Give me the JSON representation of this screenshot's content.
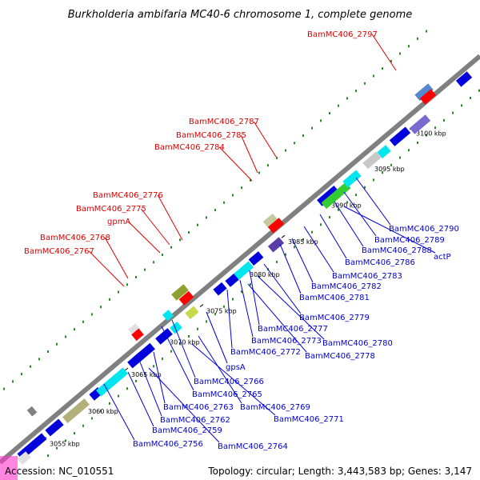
{
  "title": "Burkholderia ambifaria MC40-6 chromosome 1, complete genome",
  "footer": {
    "accession": "Accession: NC_010551",
    "summary": "Topology: circular; Length: 3,443,583 bp; Genes: 3,147"
  },
  "colors": {
    "forward_gene": "#ff0000",
    "reverse_gene": "#0000dd",
    "link_forward": "#dd0000",
    "link_reverse": "#0000dd",
    "backbone": "#888888",
    "dots": "#2a8a2a"
  },
  "ticks": [
    "3055 kbp",
    "3060 kbp",
    "3065 kbp",
    "3070 kbp",
    "3075 kbp",
    "3080 kbp",
    "3085 kbp",
    "3090 kbp",
    "3095 kbp",
    "3100 kbp"
  ],
  "labels_forward": [
    "BamMC406_2797",
    "BamMC406_2787",
    "BamMC406_2785",
    "BamMC406_2784",
    "BamMC406_2776",
    "BamMC406_2775",
    "gpmA",
    "BamMC406_2768",
    "BamMC406_2767"
  ],
  "labels_reverse": [
    "BamMC406_2790",
    "BamMC406_2789",
    "BamMC406_2788",
    "actP",
    "BamMC406_2786",
    "BamMC406_2783",
    "BamMC406_2782",
    "BamMC406_2781",
    "BamMC406_2779",
    "BamMC406_2777",
    "BamMC406_2780",
    "BamMC406_2773",
    "BamMC406_2778",
    "BamMC406_2772",
    "gpsA",
    "BamMC406_2766",
    "BamMC406_2765",
    "BamMC406_2769",
    "BamMC406_2763",
    "BamMC406_2771",
    "BamMC406_2762",
    "BamMC406_2759",
    "BamMC406_2756",
    "BamMC406_2764"
  ]
}
